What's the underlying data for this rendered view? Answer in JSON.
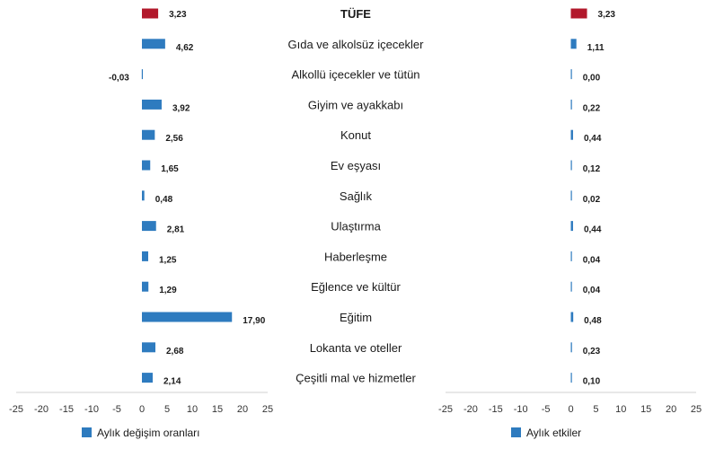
{
  "chart_data": [
    {
      "type": "bar",
      "orientation": "horizontal",
      "panel": "left",
      "categories": [
        "TÜFE",
        "Gıda ve alkolsüz içecekler",
        "Alkollü içecekler ve tütün",
        "Giyim ve ayakkabı",
        "Konut",
        "Ev eşyası",
        "Sağlık",
        "Ulaştırma",
        "Haberleşme",
        "Eğlence ve kültür",
        "Eğitim",
        "Lokanta ve oteller",
        "Çeşitli mal ve hizmetler"
      ],
      "values": [
        3.23,
        4.62,
        -0.03,
        3.92,
        2.56,
        1.65,
        0.48,
        2.81,
        1.25,
        1.29,
        17.9,
        2.68,
        2.14
      ],
      "value_labels": [
        "3,23",
        "4,62",
        "-0,03",
        "3,92",
        "2,56",
        "1,65",
        "0,48",
        "2,81",
        "1,25",
        "1,29",
        "17,90",
        "2,68",
        "2,14"
      ],
      "series_name": "Aylık değişim oranları",
      "xlim": [
        -25,
        25
      ],
      "ticks": [
        "-25",
        "-20",
        "-15",
        "-10",
        "-5",
        "0",
        "5",
        "10",
        "15",
        "20",
        "25"
      ],
      "legend": "bottom-left"
    },
    {
      "type": "bar",
      "orientation": "horizontal",
      "panel": "right",
      "categories": [
        "TÜFE",
        "Gıda ve alkolsüz içecekler",
        "Alkollü içecekler ve tütün",
        "Giyim ve ayakkabı",
        "Konut",
        "Ev eşyası",
        "Sağlık",
        "Ulaştırma",
        "Haberleşme",
        "Eğlence ve kültür",
        "Eğitim",
        "Lokanta ve oteller",
        "Çeşitli mal ve hizmetler"
      ],
      "values": [
        3.23,
        1.11,
        0.0,
        0.22,
        0.44,
        0.12,
        0.02,
        0.44,
        0.04,
        0.04,
        0.48,
        0.23,
        0.1
      ],
      "value_labels": [
        "3,23",
        "1,11",
        "0,00",
        "0,22",
        "0,44",
        "0,12",
        "0,02",
        "0,44",
        "0,04",
        "0,04",
        "0,48",
        "0,23",
        "0,10"
      ],
      "series_name": "Aylık etkiler",
      "xlim": [
        -25,
        25
      ],
      "ticks": [
        "-25",
        "-20",
        "-15",
        "-10",
        "-5",
        "0",
        "5",
        "10",
        "15",
        "20",
        "25"
      ],
      "legend": "bottom-left"
    }
  ],
  "colors": {
    "highlight": "#b2182b",
    "series": "#2e7bbf",
    "axis": "#d0d0d0"
  }
}
